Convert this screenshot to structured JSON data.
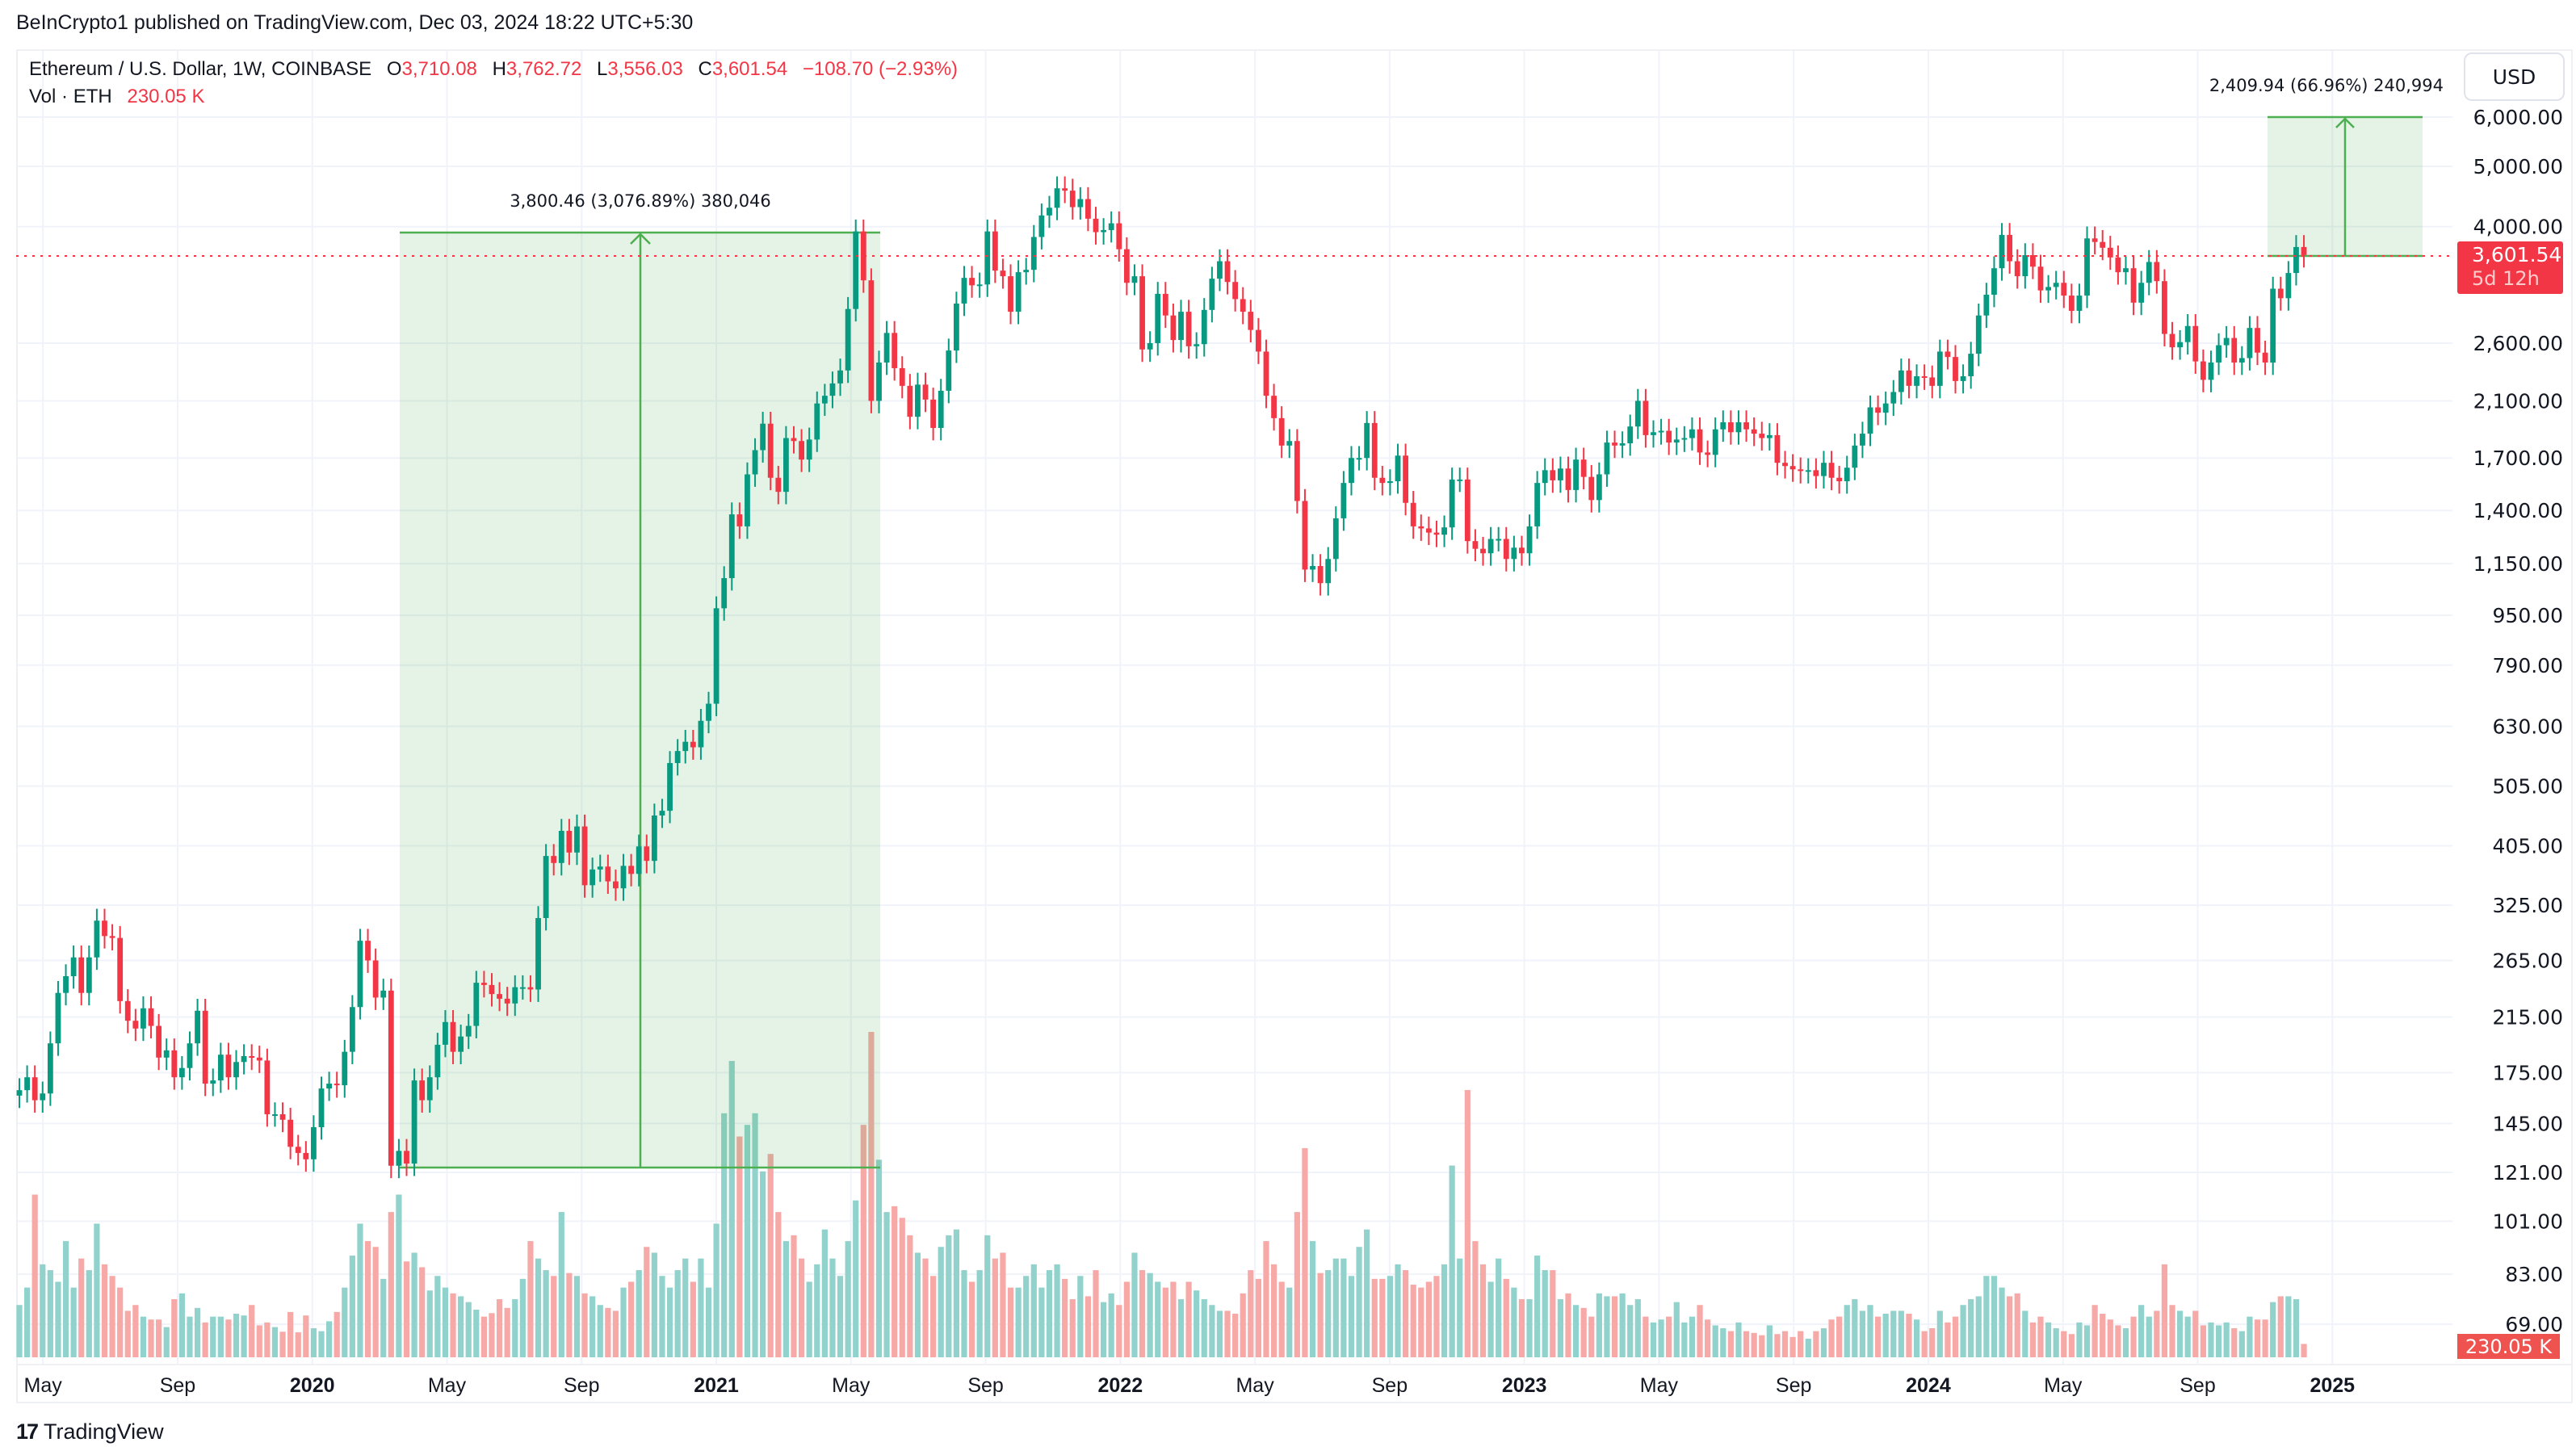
{
  "publisher": "BeInCrypto1 published on TradingView.com, Dec 03, 2024 18:22 UTC+5:30",
  "legend": {
    "symbol": "Ethereum / U.S. Dollar, 1W, COINBASE",
    "o_label": "O",
    "o": "3,710.08",
    "h_label": "H",
    "h": "3,762.72",
    "l_label": "L",
    "l": "3,556.03",
    "c_label": "C",
    "c": "3,601.54",
    "change": "−108.70 (−2.93%)",
    "vol_label": "Vol · ETH",
    "vol": "230.05 K"
  },
  "currency_button": "USD",
  "last_price": {
    "price": "3,601.54",
    "countdown": "5d 12h"
  },
  "last_volume": "230.05 K",
  "measurements": [
    {
      "text": "3,800.46 (3,076.89%) 380,046"
    },
    {
      "text": "2,409.94 (66.96%) 240,994"
    }
  ],
  "footer_logo": {
    "mark": "17",
    "text": "TradingView"
  },
  "colors": {
    "up": "#089981",
    "down": "#f23645",
    "vol_up": "#92d2cc",
    "vol_down": "#f7a9a7",
    "measure": "#4caf50"
  },
  "chart_data": {
    "type": "candlestick",
    "interval": "1W",
    "y_scale": "log",
    "grid": true,
    "price_ticks": [
      "6,000.00",
      "5,000.00",
      "4,000.00",
      "2,600.00",
      "2,100.00",
      "1,700.00",
      "1,400.00",
      "1,150.00",
      "950.00",
      "790.00",
      "630.00",
      "505.00",
      "405.00",
      "325.00",
      "265.00",
      "215.00",
      "175.00",
      "145.00",
      "121.00",
      "101.00",
      "83.00",
      "69.00"
    ],
    "price_tick_values": [
      6000,
      5000,
      4000,
      2600,
      2100,
      1700,
      1400,
      1150,
      950,
      790,
      630,
      505,
      405,
      325,
      265,
      215,
      175,
      145,
      121,
      101,
      83,
      69
    ],
    "time_labels": [
      "May",
      "Sep",
      "2020",
      "May",
      "Sep",
      "2021",
      "May",
      "Sep",
      "2022",
      "May",
      "Sep",
      "2023",
      "May",
      "Sep",
      "2024",
      "May",
      "Sep",
      "2025"
    ],
    "first_week": "2019-04-08",
    "close": [
      164,
      172,
      158,
      162,
      195,
      235,
      250,
      268,
      235,
      268,
      307,
      290,
      288,
      228,
      212,
      206,
      222,
      208,
      185,
      190,
      172,
      178,
      195,
      220,
      168,
      170,
      187,
      172,
      182,
      186,
      185,
      183,
      150,
      150,
      147,
      133,
      130,
      127,
      143,
      165,
      168,
      167,
      189,
      223,
      285,
      265,
      231,
      237,
      124,
      131,
      125,
      170,
      158,
      172,
      194,
      211,
      189,
      200,
      208,
      244,
      242,
      234,
      230,
      226,
      240,
      240,
      238,
      310,
      390,
      380,
      428,
      395,
      435,
      350,
      371,
      375,
      355,
      346,
      376,
      365,
      404,
      383,
      453,
      461,
      550,
      575,
      595,
      583,
      643,
      685,
      975,
      1090,
      1380,
      1320,
      1600,
      1750,
      1930,
      1580,
      1500,
      1830,
      1810,
      1690,
      1820,
      2080,
      2140,
      2240,
      2350,
      2950,
      3930,
      3280,
      2100,
      2420,
      2700,
      2370,
      2220,
      1980,
      2230,
      2110,
      1900,
      2180,
      2530,
      3010,
      3310,
      3220,
      3230,
      3930,
      3400,
      3330,
      2920,
      3380,
      3410,
      3850,
      4170,
      4290,
      4610,
      4570,
      4300,
      4430,
      4120,
      3920,
      3950,
      4050,
      3680,
      3250,
      3330,
      2540,
      2600,
      3120,
      2880,
      2630,
      2920,
      2570,
      2590,
      2940,
      3300,
      3520,
      3260,
      3060,
      2920,
      2730,
      2520,
      2140,
      1970,
      1780,
      1810,
      1450,
      1125,
      1140,
      1070,
      1170,
      1360,
      1550,
      1700,
      1700,
      1935,
      1580,
      1550,
      1560,
      1715,
      1440,
      1320,
      1310,
      1290,
      1280,
      1315,
      1570,
      1570,
      1250,
      1215,
      1195,
      1260,
      1260,
      1170,
      1220,
      1195,
      1320,
      1550,
      1625,
      1565,
      1635,
      1510,
      1690,
      1585,
      1455,
      1600,
      1800,
      1780,
      1795,
      1910,
      2100,
      1850,
      1870,
      1880,
      1800,
      1820,
      1830,
      1890,
      1735,
      1720,
      1890,
      1940,
      1870,
      1940,
      1890,
      1860,
      1830,
      1850,
      1670,
      1650,
      1630,
      1620,
      1625,
      1590,
      1670,
      1580,
      1560,
      1640,
      1780,
      1860,
      2050,
      2010,
      2080,
      2170,
      2350,
      2220,
      2300,
      2290,
      2220,
      2520,
      2470,
      2260,
      2300,
      2500,
      2880,
      3110,
      3430,
      3880,
      3520,
      3330,
      3600,
      3450,
      3160,
      3200,
      3250,
      3100,
      2930,
      3100,
      3830,
      3780,
      3700,
      3570,
      3380,
      3430,
      3020,
      3250,
      3510,
      3270,
      2690,
      2560,
      2610,
      2770,
      2430,
      2270,
      2420,
      2580,
      2650,
      2420,
      2460,
      2750,
      2510,
      2420,
      3180,
      3070,
      3370,
      3710,
      3601.54
    ],
    "volume_k": [
      900,
      1200,
      2800,
      1600,
      1500,
      1300,
      2000,
      1200,
      1700,
      1500,
      2300,
      1600,
      1400,
      1200,
      800,
      900,
      700,
      650,
      650,
      520,
      1000,
      1100,
      700,
      850,
      600,
      700,
      700,
      650,
      750,
      720,
      900,
      550,
      600,
      520,
      440,
      780,
      430,
      720,
      500,
      450,
      620,
      780,
      1200,
      1750,
      2300,
      2000,
      1900,
      1350,
      2500,
      2800,
      1650,
      1800,
      1550,
      1150,
      1400,
      1200,
      1100,
      1050,
      950,
      820,
      700,
      760,
      1000,
      850,
      1000,
      1350,
      2000,
      1700,
      1500,
      1400,
      2500,
      1450,
      1400,
      1100,
      1050,
      900,
      850,
      800,
      1200,
      1300,
      1500,
      1900,
      1800,
      1400,
      1200,
      1500,
      1700,
      1300,
      1700,
      1200,
      2300,
      4200,
      5100,
      3800,
      4000,
      4200,
      3200,
      3500,
      2500,
      2000,
      2100,
      1700,
      1300,
      1600,
      2200,
      1700,
      1400,
      2000,
      2700,
      4000,
      5600,
      3400,
      2500,
      2600,
      2400,
      2100,
      1800,
      1700,
      1400,
      1900,
      2100,
      2200,
      1500,
      1300,
      1500,
      2100,
      1700,
      1800,
      1200,
      1200,
      1400,
      1600,
      1200,
      1500,
      1600,
      1350,
      1000,
      1400,
      1050,
      1500,
      950,
      1100,
      900,
      1300,
      1800,
      1500,
      1450,
      1300,
      1200,
      1300,
      1000,
      1300,
      1150,
      1000,
      900,
      800,
      800,
      750,
      1100,
      1500,
      1350,
      2000,
      1600,
      1300,
      1200,
      2500,
      3600,
      2000,
      1450,
      1500,
      1700,
      1700,
      1400,
      1900,
      2200,
      1350,
      1350,
      1400,
      1600,
      1500,
      1250,
      1200,
      1300,
      1400,
      1600,
      3300,
      1700,
      4600,
      2000,
      1600,
      1300,
      1700,
      1350,
      1200,
      1000,
      1000,
      1750,
      1500,
      1500,
      1000,
      1100,
      900,
      850,
      700,
      1100,
      1050,
      1050,
      1100,
      900,
      1000,
      700,
      600,
      650,
      700,
      950,
      600,
      700,
      900,
      650,
      550,
      500,
      450,
      600,
      450,
      420,
      380,
      550,
      400,
      450,
      350,
      450,
      320,
      450,
      500,
      650,
      700,
      900,
      1000,
      800,
      900,
      700,
      750,
      800,
      800,
      750,
      650,
      450,
      500,
      800,
      600,
      700,
      900,
      1000,
      1050,
      1400,
      1400,
      1200,
      1050,
      1100,
      800,
      600,
      700,
      600,
      500,
      450,
      400,
      600,
      550,
      900,
      750,
      650,
      550,
      500,
      700,
      900,
      700,
      800,
      1600,
      900,
      800,
      700,
      800,
      550,
      600,
      550,
      600,
      500,
      450,
      700,
      650,
      650,
      950,
      1050,
      1050,
      1000,
      230.05
    ]
  }
}
